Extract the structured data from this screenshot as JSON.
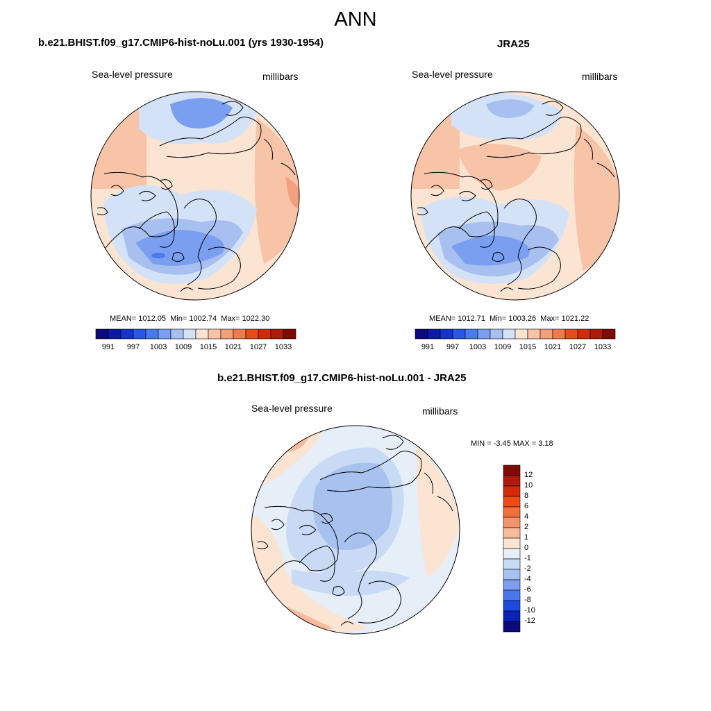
{
  "figure": {
    "title": "ANN"
  },
  "panels": [
    {
      "title": "b.e21.BHIST.f09_g17.CMIP6-hist-noLu.001 (yrs 1930-1954)",
      "variable": "Sea-level pressure",
      "units": "millibars",
      "stats": {
        "mean_label": "MEAN=",
        "mean": "1012.05",
        "min_label": "Min=",
        "min": "1002.74",
        "max_label": "Max=",
        "max": "1022.30"
      }
    },
    {
      "title": "JRA25",
      "variable": "Sea-level pressure",
      "units": "millibars",
      "stats": {
        "mean_label": "MEAN=",
        "mean": "1012.71",
        "min_label": "Min=",
        "min": "1003.26",
        "max_label": "Max=",
        "max": "1021.22"
      }
    },
    {
      "title": "b.e21.BHIST.f09_g17.CMIP6-hist-noLu.001 - JRA25",
      "variable": "Sea-level pressure",
      "units": "millibars",
      "stats": {
        "min_label": "MIN =",
        "min": "-3.45",
        "max_label": "MAX =",
        "max": "3.18"
      }
    }
  ],
  "colorbar_abs": {
    "ticks": [
      "991",
      "997",
      "1003",
      "1009",
      "1015",
      "1021",
      "1027",
      "1033"
    ],
    "colors": [
      "#0a0a7a",
      "#0a1aa8",
      "#1432d0",
      "#2a56ec",
      "#4a7af0",
      "#7a9ef0",
      "#a8c0f0",
      "#d4e2f8",
      "#fbe4d2",
      "#f8c4a8",
      "#f4a07c",
      "#f07a50",
      "#e84c1c",
      "#d42a0a",
      "#b01a0a",
      "#800a06"
    ]
  },
  "colorbar_diff": {
    "ticks": [
      "12",
      "10",
      "8",
      "6",
      "4",
      "2",
      "1",
      "0",
      "-1",
      "-2",
      "-4",
      "-6",
      "-8",
      "-10",
      "-12"
    ],
    "colors_top_to_bottom": [
      "#800a06",
      "#b01a0a",
      "#d42a0a",
      "#f04a16",
      "#f4703a",
      "#f4946a",
      "#f8bc9c",
      "#fbe4d2",
      "#e6eef8",
      "#c8daf4",
      "#a8c2f0",
      "#7c9ef0",
      "#4a78ec",
      "#1c4ae0",
      "#0a24b8",
      "#0a0a7a"
    ]
  },
  "chart_data": [
    {
      "type": "heatmap",
      "title": "b.e21.BHIST.f09_g17.CMIP6-hist-noLu.001 (yrs 1930-1954)",
      "variable": "Sea-level pressure",
      "units": "millibars",
      "projection": "north polar stereographic",
      "mean": 1012.05,
      "min": 1002.74,
      "max": 1022.3,
      "colorbar_ticks": [
        991,
        997,
        1003,
        1009,
        1015,
        1021,
        1027,
        1033
      ]
    },
    {
      "type": "heatmap",
      "title": "JRA25",
      "variable": "Sea-level pressure",
      "units": "millibars",
      "projection": "north polar stereographic",
      "mean": 1012.71,
      "min": 1003.26,
      "max": 1021.22,
      "colorbar_ticks": [
        991,
        997,
        1003,
        1009,
        1015,
        1021,
        1027,
        1033
      ]
    },
    {
      "type": "heatmap",
      "title": "b.e21.BHIST.f09_g17.CMIP6-hist-noLu.001 - JRA25",
      "variable": "Sea-level pressure",
      "units": "millibars",
      "projection": "north polar stereographic",
      "min": -3.45,
      "max": 3.18,
      "colorbar_ticks": [
        12,
        10,
        8,
        6,
        4,
        2,
        1,
        0,
        -1,
        -2,
        -4,
        -6,
        -8,
        -10,
        -12
      ]
    }
  ]
}
